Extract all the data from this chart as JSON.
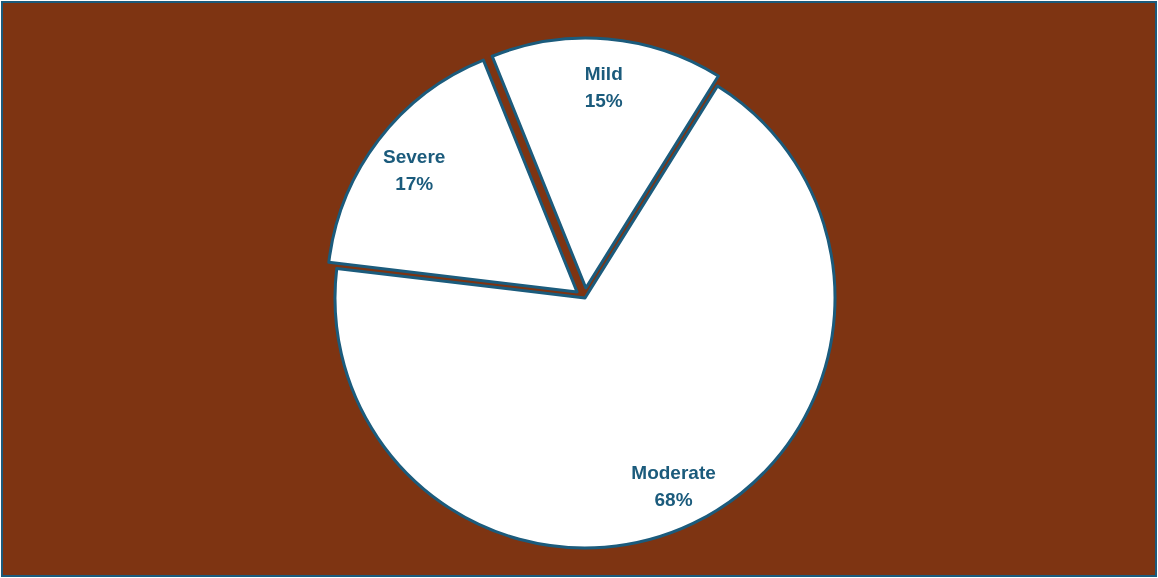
{
  "chart_data": {
    "type": "pie",
    "categories": [
      "Mild",
      "Moderate",
      "Severe"
    ],
    "values": [
      15,
      68,
      17
    ],
    "colors": [
      "#ffffff",
      "#ffffff",
      "#ffffff"
    ],
    "value_labels": [
      "15%",
      "68%",
      "17%"
    ]
  }
}
